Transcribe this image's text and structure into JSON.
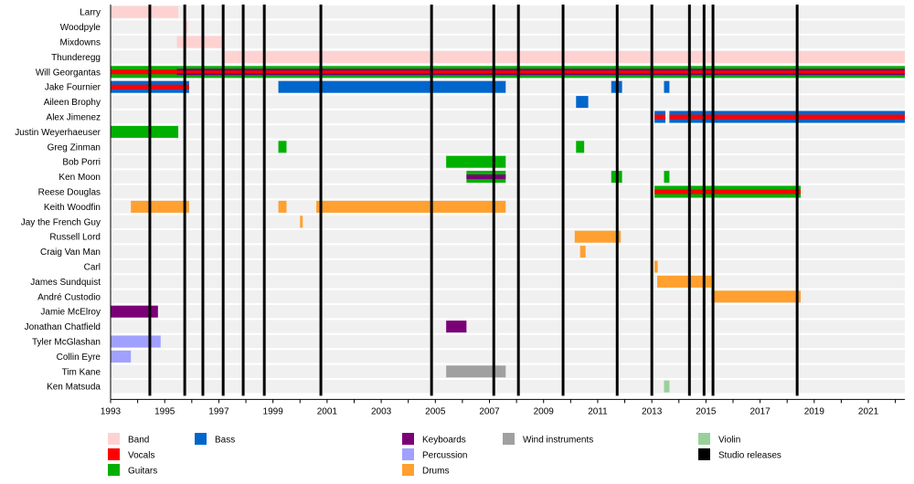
{
  "chart_data": {
    "type": "timeline",
    "title": "",
    "xlabel": "",
    "ylabel": "",
    "xlim": [
      1993.0,
      2022.35
    ],
    "x_ticks": [
      "1993",
      "1995",
      "1997",
      "1999",
      "2001",
      "2003",
      "2005",
      "2007",
      "2009",
      "2011",
      "2013",
      "2015",
      "2017",
      "2019",
      "2021"
    ],
    "colors": {
      "band": "#ffd2d2",
      "vocals": "#ff0000",
      "guitars": "#00b000",
      "bass": "#0066cc",
      "keyboards": "#7a0077",
      "percussion": "#a0a0ff",
      "drums": "#ffa030",
      "wind": "#a0a0a0",
      "violin": "#99d099",
      "studio": "#000000"
    },
    "members": [
      {
        "name": "Larry",
        "bars": [
          {
            "role": "band",
            "start": 1993.0,
            "end": 1995.5
          }
        ]
      },
      {
        "name": "Woodpyle",
        "bars": [
          {
            "role": "band",
            "start": 1995.75,
            "end": 1995.85
          }
        ]
      },
      {
        "name": "Mixdowns",
        "bars": [
          {
            "role": "band",
            "start": 1995.45,
            "end": 1997.2
          }
        ]
      },
      {
        "name": "Thunderegg",
        "bars": [
          {
            "role": "band",
            "start": 1997.2,
            "end": 2022.35
          }
        ]
      },
      {
        "name": "Will Georgantas",
        "bars": [
          {
            "role": "guitars",
            "start": 1993.0,
            "end": 2022.35
          },
          {
            "role": "vocals",
            "start": 1993.0,
            "end": 2022.35,
            "inner": true
          },
          {
            "role": "keyboards",
            "start": 1995.45,
            "end": 2022.35,
            "stripe": true
          }
        ]
      },
      {
        "name": "Jake Fournier",
        "bars": [
          {
            "role": "bass",
            "start": 1993.0,
            "end": 1995.9
          },
          {
            "role": "vocals",
            "start": 1993.0,
            "end": 1995.9,
            "inner": true
          },
          {
            "role": "bass",
            "start": 1999.2,
            "end": 2007.6
          },
          {
            "role": "bass",
            "start": 2011.5,
            "end": 2011.9
          },
          {
            "role": "bass",
            "start": 2013.45,
            "end": 2013.65
          }
        ]
      },
      {
        "name": "Aileen Brophy",
        "bars": [
          {
            "role": "bass",
            "start": 2010.2,
            "end": 2010.65
          }
        ]
      },
      {
        "name": "Alex Jimenez",
        "bars": [
          {
            "role": "bass",
            "start": 2013.1,
            "end": 2013.5
          },
          {
            "role": "vocals",
            "start": 2013.1,
            "end": 2013.5,
            "inner": true
          },
          {
            "role": "bass",
            "start": 2013.65,
            "end": 2022.35
          },
          {
            "role": "vocals",
            "start": 2013.65,
            "end": 2022.35,
            "inner": true
          }
        ]
      },
      {
        "name": "Justin Weyerhaeuser",
        "bars": [
          {
            "role": "guitars",
            "start": 1993.0,
            "end": 1995.5
          }
        ]
      },
      {
        "name": "Greg Zinman",
        "bars": [
          {
            "role": "guitars",
            "start": 1999.2,
            "end": 1999.5
          },
          {
            "role": "guitars",
            "start": 2010.2,
            "end": 2010.5
          }
        ]
      },
      {
        "name": "Bob Porri",
        "bars": [
          {
            "role": "guitars",
            "start": 2005.4,
            "end": 2007.6
          }
        ]
      },
      {
        "name": "Ken Moon",
        "bars": [
          {
            "role": "guitars",
            "start": 2006.15,
            "end": 2007.6
          },
          {
            "role": "keyboards",
            "start": 2006.15,
            "end": 2007.6,
            "inner": true
          },
          {
            "role": "guitars",
            "start": 2011.5,
            "end": 2011.9
          },
          {
            "role": "guitars",
            "start": 2013.45,
            "end": 2013.65
          }
        ]
      },
      {
        "name": "Reese Douglas",
        "bars": [
          {
            "role": "guitars",
            "start": 2013.1,
            "end": 2018.5
          },
          {
            "role": "vocals",
            "start": 2013.1,
            "end": 2018.5,
            "inner": true
          }
        ]
      },
      {
        "name": "Keith Woodfin",
        "bars": [
          {
            "role": "drums",
            "start": 1993.75,
            "end": 1995.9
          },
          {
            "role": "drums",
            "start": 1999.2,
            "end": 1999.5
          },
          {
            "role": "drums",
            "start": 2000.6,
            "end": 2007.6
          }
        ]
      },
      {
        "name": "Jay the French Guy",
        "bars": [
          {
            "role": "drums",
            "start": 2000.0,
            "end": 2000.1
          }
        ]
      },
      {
        "name": "Russell Lord",
        "bars": [
          {
            "role": "drums",
            "start": 2010.15,
            "end": 2011.85
          }
        ]
      },
      {
        "name": "Craig Van Man",
        "bars": [
          {
            "role": "drums",
            "start": 2010.35,
            "end": 2010.55
          }
        ]
      },
      {
        "name": "Carl",
        "bars": [
          {
            "role": "drums",
            "start": 2013.1,
            "end": 2013.22
          }
        ]
      },
      {
        "name": "James Sundquist",
        "bars": [
          {
            "role": "drums",
            "start": 2013.2,
            "end": 2015.2
          }
        ]
      },
      {
        "name": "André Custodio",
        "bars": [
          {
            "role": "drums",
            "start": 2015.2,
            "end": 2018.5
          }
        ]
      },
      {
        "name": "Jamie McElroy",
        "bars": [
          {
            "role": "keyboards",
            "start": 1993.0,
            "end": 1994.75
          }
        ]
      },
      {
        "name": "Jonathan Chatfield",
        "bars": [
          {
            "role": "keyboards",
            "start": 2005.4,
            "end": 2006.15
          }
        ]
      },
      {
        "name": "Tyler McGlashan",
        "bars": [
          {
            "role": "percussion",
            "start": 1993.0,
            "end": 1994.85
          }
        ]
      },
      {
        "name": "Collin Eyre",
        "bars": [
          {
            "role": "percussion",
            "start": 1993.0,
            "end": 1993.75
          }
        ]
      },
      {
        "name": "Tim Kane",
        "bars": [
          {
            "role": "wind",
            "start": 2005.4,
            "end": 2007.6
          }
        ]
      },
      {
        "name": "Ken Matsuda",
        "bars": [
          {
            "role": "violin",
            "start": 2013.45,
            "end": 2013.65
          }
        ]
      }
    ],
    "studio_releases": [
      1994.45,
      1995.74,
      1996.41,
      1997.16,
      1997.9,
      1998.68,
      2000.77,
      2004.86,
      2007.16,
      2008.07,
      2009.72,
      2011.72,
      2013.0,
      2014.39,
      2014.93,
      2015.26,
      2018.37
    ],
    "legend": {
      "placement": "bottom",
      "columns": [
        [
          {
            "role": "band",
            "label": "Band"
          },
          {
            "role": "vocals",
            "label": "Vocals"
          },
          {
            "role": "guitars",
            "label": "Guitars"
          }
        ],
        [
          {
            "role": "bass",
            "label": "Bass"
          }
        ],
        [
          {
            "role": "keyboards",
            "label": "Keyboards"
          },
          {
            "role": "percussion",
            "label": "Percussion"
          },
          {
            "role": "drums",
            "label": "Drums"
          }
        ],
        [
          {
            "role": "wind",
            "label": "Wind instruments"
          }
        ],
        [
          {
            "role": "violin",
            "label": "Violin"
          },
          {
            "role": "studio",
            "label": "Studio releases"
          }
        ]
      ]
    }
  }
}
